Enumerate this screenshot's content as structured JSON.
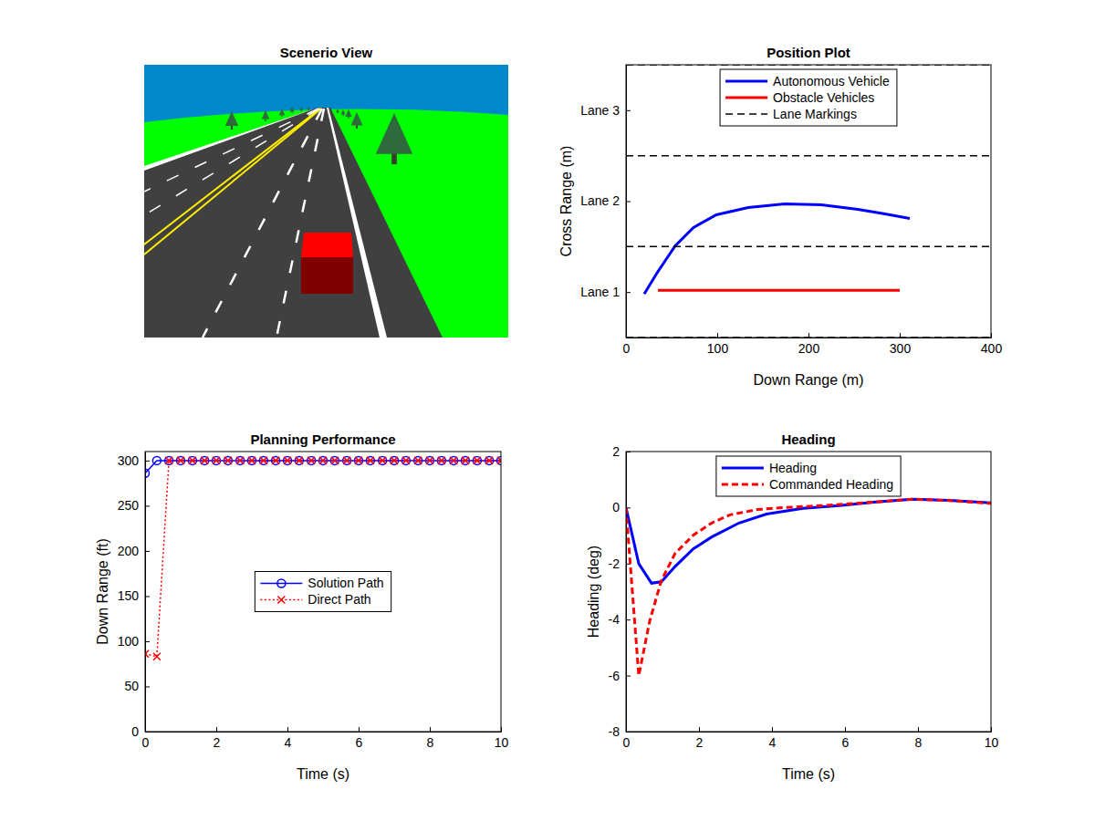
{
  "chart_data": [
    {
      "type": "scene",
      "title": "Scenerio View"
    },
    {
      "type": "line",
      "title": "Position Plot",
      "x_label": "Down Range (m)",
      "y_label": "Cross Range (m)",
      "xlim": [
        0,
        400
      ],
      "xticks": [
        0,
        100,
        200,
        300,
        400
      ],
      "ylim": [
        0.5,
        3.5
      ],
      "yticks": [
        {
          "value": 1,
          "label": "Lane 1"
        },
        {
          "value": 2,
          "label": "Lane 2"
        },
        {
          "value": 3,
          "label": "Lane 3"
        }
      ],
      "grid": false,
      "legend": "upper center",
      "series": [
        {
          "name": "Autonomous Vehicle",
          "color": "#0000ff",
          "line_style": "solid",
          "x": [
            20,
            34,
            54,
            74,
            99,
            134,
            174,
            214,
            254,
            284,
            311
          ],
          "values": [
            0.98,
            1.21,
            1.51,
            1.71,
            1.85,
            1.93,
            1.97,
            1.96,
            1.91,
            1.86,
            1.81
          ]
        },
        {
          "name": "Obstacle Vehicles",
          "color": "#ff0000",
          "line_style": "solid",
          "x": [
            35,
            300
          ],
          "values": [
            1.02,
            1.02
          ]
        },
        {
          "name": "Lane Markings",
          "color": "#000000",
          "line_style": "dashed",
          "x": [
            0,
            400,
            null,
            0,
            400,
            null,
            0,
            400,
            null,
            0,
            400
          ],
          "values": [
            0.5,
            0.5,
            null,
            1.5,
            1.5,
            null,
            2.5,
            2.5,
            null,
            3.5,
            3.5
          ]
        }
      ]
    },
    {
      "type": "line",
      "title": "Planning Performance",
      "x_label": "Time (s)",
      "y_label": "Down Range (ft)",
      "xlim": [
        0,
        10
      ],
      "xticks": [
        0,
        2,
        4,
        6,
        8,
        10
      ],
      "ylim": [
        0,
        310
      ],
      "yticks": [
        0,
        50,
        100,
        150,
        200,
        250,
        300
      ],
      "grid": false,
      "legend": "center",
      "x": [
        0,
        0.33,
        0.67,
        1,
        1.33,
        1.67,
        2,
        2.33,
        2.67,
        3,
        3.33,
        3.67,
        4,
        4.33,
        4.67,
        5,
        5.33,
        5.67,
        6,
        6.33,
        6.67,
        7,
        7.33,
        7.67,
        8,
        8.33,
        8.67,
        9,
        9.33,
        9.67,
        10
      ],
      "series": [
        {
          "name": "Solution Path",
          "color": "#0000ff",
          "line_style": "solid",
          "marker": "circle",
          "values": [
            286,
            300,
            300,
            300,
            300,
            300,
            300,
            300,
            300,
            300,
            300,
            300,
            300,
            300,
            300,
            300,
            300,
            300,
            300,
            300,
            300,
            300,
            300,
            300,
            300,
            300,
            300,
            300,
            300,
            300,
            300
          ]
        },
        {
          "name": "Direct Path",
          "color": "#ff0000",
          "line_style": "dotted",
          "marker": "x",
          "values": [
            86,
            83,
            300,
            300,
            300,
            300,
            300,
            300,
            300,
            300,
            300,
            300,
            300,
            300,
            300,
            300,
            300,
            300,
            300,
            300,
            300,
            300,
            300,
            300,
            300,
            300,
            300,
            300,
            300,
            300,
            300
          ]
        }
      ]
    },
    {
      "type": "line",
      "title": "Heading",
      "x_label": "Time (s)",
      "y_label": "Heading (deg)",
      "xlim": [
        0,
        10
      ],
      "xticks": [
        0,
        2,
        4,
        6,
        8,
        10
      ],
      "ylim": [
        -8,
        2
      ],
      "yticks": [
        -8,
        -6,
        -4,
        -2,
        0,
        2
      ],
      "grid": false,
      "legend": "upper center",
      "series": [
        {
          "name": "Heading",
          "color": "#0000ff",
          "line_style": "solid",
          "x": [
            0,
            0.35,
            0.7,
            0.97,
            1.35,
            1.85,
            2.35,
            3.1,
            3.85,
            4.85,
            5.85,
            6.85,
            7.85,
            8.85,
            10
          ],
          "values": [
            0,
            -2.0,
            -2.7,
            -2.65,
            -2.1,
            -1.47,
            -1.05,
            -0.55,
            -0.23,
            -0.03,
            0.07,
            0.2,
            0.3,
            0.26,
            0.17
          ]
        },
        {
          "name": "Commanded Heading",
          "color": "#ff0000",
          "line_style": "dashed",
          "x": [
            0,
            0.35,
            0.65,
            0.97,
            1.35,
            1.85,
            2.35,
            2.85,
            3.6,
            4.35,
            5.35,
            6.85,
            7.85,
            8.85,
            10
          ],
          "values": [
            0,
            -6.0,
            -4.05,
            -2.6,
            -1.63,
            -0.98,
            -0.55,
            -0.26,
            -0.07,
            0,
            0.07,
            0.2,
            0.3,
            0.25,
            0.15
          ]
        }
      ]
    }
  ]
}
